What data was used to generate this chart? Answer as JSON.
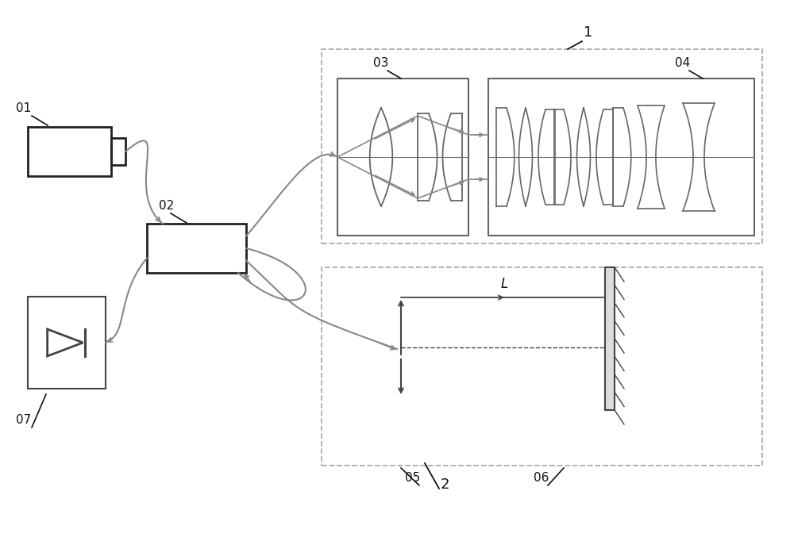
{
  "bg_color": "#ffffff",
  "lc": "#444444",
  "lc_light": "#888888",
  "lc_box": "#666666",
  "lblc": "#111111",
  "figsize": [
    10.0,
    6.72
  ],
  "dpi": 100
}
